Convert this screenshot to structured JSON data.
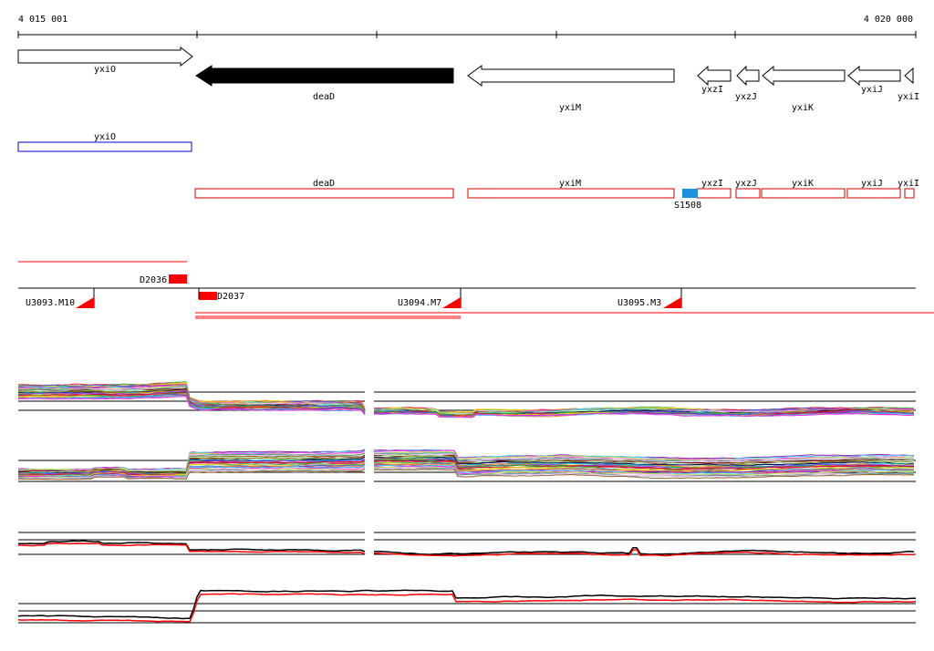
{
  "ruler": {
    "start_label": "4 015 001",
    "end_label": "4 020 000"
  },
  "genes": [
    {
      "name": "yxiO",
      "dir": "+",
      "filled": false
    },
    {
      "name": "deaD",
      "dir": "-",
      "filled": true
    },
    {
      "name": "yxiM",
      "dir": "-",
      "filled": false
    },
    {
      "name": "yxzI",
      "dir": "-",
      "filled": false
    },
    {
      "name": "yxzJ",
      "dir": "-",
      "filled": false
    },
    {
      "name": "yxiK",
      "dir": "-",
      "filled": false
    },
    {
      "name": "yxiJ",
      "dir": "-",
      "filled": false
    },
    {
      "name": "yxiI",
      "dir": "-",
      "filled": false
    }
  ],
  "blue_features": [
    {
      "name": "yxiO"
    }
  ],
  "red_features": [
    {
      "name": "deaD"
    },
    {
      "name": "yxiM"
    },
    {
      "name": "yxzI"
    },
    {
      "name": "yxzJ"
    },
    {
      "name": "yxiK"
    },
    {
      "name": "yxiJ"
    },
    {
      "name": "yxiI"
    }
  ],
  "srna": {
    "name": "S1508",
    "color": "#1e90e0"
  },
  "terminators": [
    {
      "name": "D2036"
    },
    {
      "name": "D2037"
    }
  ],
  "transcription_units": [
    {
      "name": "U3093.M10"
    },
    {
      "name": "U3094.M7"
    },
    {
      "name": "U3095.M3"
    }
  ],
  "colors": {
    "feature_red": "#cc0000",
    "feature_blue": "#0000cc",
    "marker_red": "#ff0000"
  },
  "expression_panels": [
    {
      "id": "panel-1",
      "type": "multi-condition"
    },
    {
      "id": "panel-2",
      "type": "multi-condition"
    },
    {
      "id": "panel-3",
      "type": "strand-comparison"
    },
    {
      "id": "panel-4",
      "type": "strand-comparison"
    }
  ]
}
